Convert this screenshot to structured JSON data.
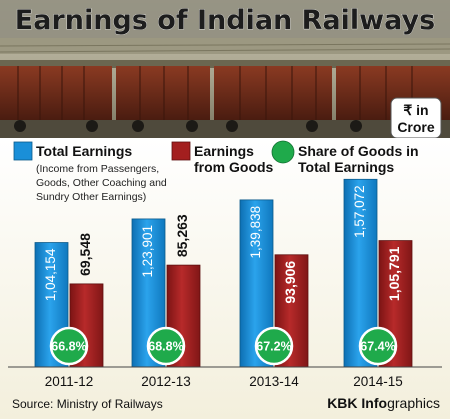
{
  "title": "Earnings of Indian Railways",
  "unit_label_line1": "₹ in",
  "unit_label_line2": "Crore",
  "legend": [
    {
      "key": "total",
      "label_lines": [
        "Total Earnings"
      ],
      "sub_lines": [
        "(Income from Passengers,",
        "Goods, Other Coaching and",
        "Sundry Other Earnings)"
      ],
      "color": "#1a8fd8",
      "marker": "square"
    },
    {
      "key": "goods",
      "label_lines": [
        "Earnings",
        "from Goods"
      ],
      "sub_lines": [],
      "color": "#a31f1f",
      "marker": "square"
    },
    {
      "key": "share",
      "label_lines": [
        "Share of Goods in",
        "Total Earnings"
      ],
      "sub_lines": [],
      "color": "#1faa4b",
      "marker": "circle"
    }
  ],
  "source": "Source: Ministry of Railways",
  "credit_part1": "KBK Info",
  "credit_part2": "graphics",
  "colors": {
    "total": "#1a8fd8",
    "goods": "#a31f1f",
    "share": "#1faa4b",
    "title_band": "#8a8a7a",
    "title_text": "#1d1d1d"
  },
  "chart_data": {
    "type": "bar",
    "categories": [
      "2011-12",
      "2012-13",
      "2013-14",
      "2014-15"
    ],
    "series": [
      {
        "name": "Total Earnings",
        "values": [
          104154,
          123901,
          139838,
          157072
        ],
        "labels": [
          "1,04,154",
          "1,23,901",
          "1,39,838",
          "1,57,072"
        ]
      },
      {
        "name": "Earnings from Goods",
        "values": [
          69548,
          85263,
          93906,
          105791
        ],
        "labels": [
          "69,548",
          "85,263",
          "93,906",
          "1,05,791"
        ]
      }
    ],
    "share_of_goods": [
      "66.8%",
      "68.8%",
      "67.2%",
      "67.4%"
    ],
    "ylim": [
      0,
      160000
    ]
  }
}
